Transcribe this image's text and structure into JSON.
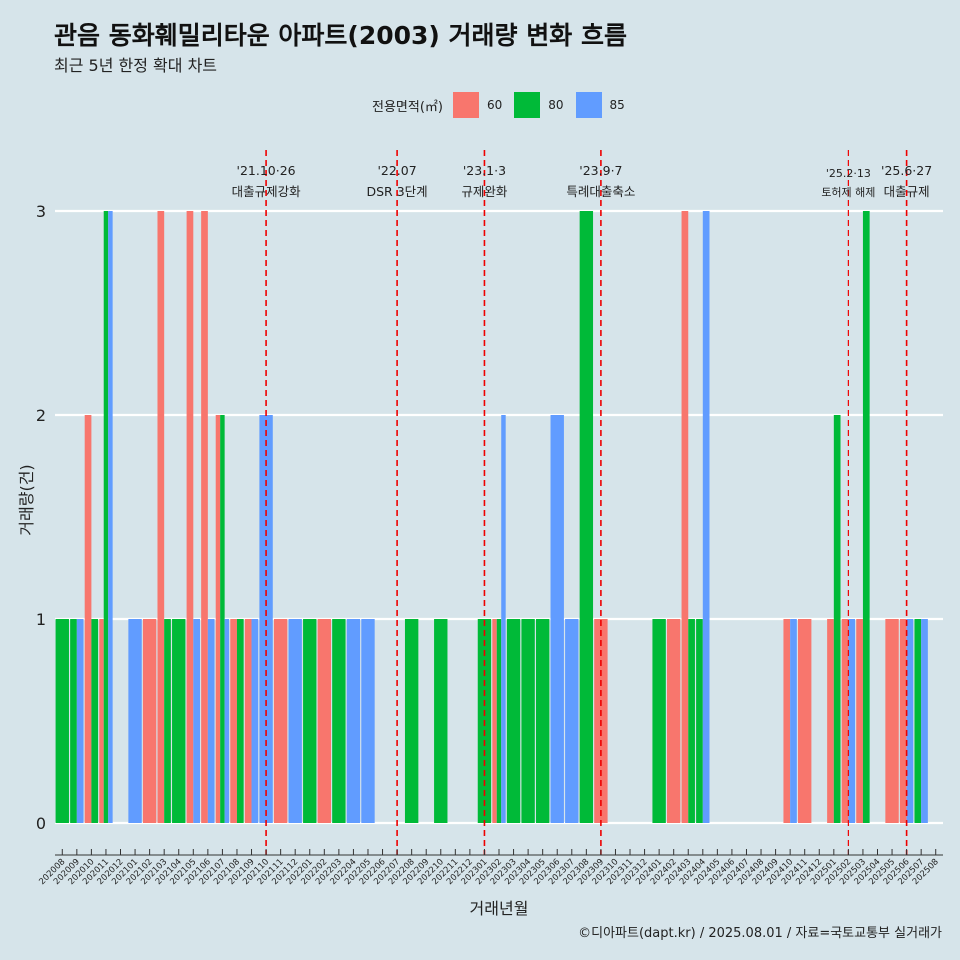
{
  "title": "관음 동화훼밀리타운 아파트(2003) 거래량 변화 흐름",
  "subtitle": "최근 5년 한정 확대 차트",
  "caption": "©디아파트(dapt.kr) / 2025.08.01 / 자료=국토교통부 실거래가",
  "colors": {
    "60": "#f8766d",
    "80": "#00ba38",
    "85": "#619cff",
    "event_line": "#ee0000",
    "grid": "#ffffff",
    "background": "#d6e4ea"
  },
  "legend": {
    "title": "전용면적(㎡)",
    "items": [
      {
        "label": "60",
        "key": "60"
      },
      {
        "label": "80",
        "key": "80"
      },
      {
        "label": "85",
        "key": "85"
      }
    ]
  },
  "chart_data": {
    "type": "bar",
    "xlabel": "거래년월",
    "ylabel": "거래량(건)",
    "ylim": [
      0,
      3
    ],
    "yticks": [
      0,
      1,
      2,
      3
    ],
    "categories": [
      "202008",
      "202009",
      "202010",
      "202011",
      "202012",
      "202101",
      "202102",
      "202103",
      "202104",
      "202105",
      "202106",
      "202107",
      "202108",
      "202109",
      "202110",
      "202111",
      "202112",
      "202201",
      "202202",
      "202203",
      "202204",
      "202205",
      "202206",
      "202207",
      "202208",
      "202209",
      "202210",
      "202211",
      "202212",
      "202301",
      "202302",
      "202303",
      "202304",
      "202305",
      "202306",
      "202307",
      "202308",
      "202309",
      "202310",
      "202311",
      "202312",
      "202401",
      "202402",
      "202403",
      "202404",
      "202405",
      "202406",
      "202407",
      "202408",
      "202409",
      "202410",
      "202411",
      "202412",
      "202501",
      "202502",
      "202503",
      "202504",
      "202505",
      "202506",
      "202507",
      "202508"
    ],
    "bars": [
      {
        "month": "202008",
        "sizes": [
          {
            "size": "80",
            "value": 1
          }
        ]
      },
      {
        "month": "202009",
        "sizes": [
          {
            "size": "80",
            "value": 1
          },
          {
            "size": "85",
            "value": 1
          }
        ]
      },
      {
        "month": "202010",
        "sizes": [
          {
            "size": "60",
            "value": 2
          },
          {
            "size": "80",
            "value": 1
          }
        ]
      },
      {
        "month": "202011",
        "sizes": [
          {
            "size": "60",
            "value": 1
          },
          {
            "size": "80",
            "value": 3
          },
          {
            "size": "85",
            "value": 3
          }
        ]
      },
      {
        "month": "202101",
        "sizes": [
          {
            "size": "85",
            "value": 1
          }
        ]
      },
      {
        "month": "202102",
        "sizes": [
          {
            "size": "60",
            "value": 1
          }
        ]
      },
      {
        "month": "202103",
        "sizes": [
          {
            "size": "60",
            "value": 3
          },
          {
            "size": "80",
            "value": 1
          }
        ]
      },
      {
        "month": "202104",
        "sizes": [
          {
            "size": "80",
            "value": 1
          }
        ]
      },
      {
        "month": "202105",
        "sizes": [
          {
            "size": "60",
            "value": 3
          },
          {
            "size": "85",
            "value": 1
          }
        ]
      },
      {
        "month": "202106",
        "sizes": [
          {
            "size": "60",
            "value": 3
          },
          {
            "size": "85",
            "value": 1
          }
        ]
      },
      {
        "month": "202107",
        "sizes": [
          {
            "size": "60",
            "value": 2
          },
          {
            "size": "80",
            "value": 2
          },
          {
            "size": "85",
            "value": 1
          }
        ]
      },
      {
        "month": "202108",
        "sizes": [
          {
            "size": "60",
            "value": 1
          },
          {
            "size": "80",
            "value": 1
          }
        ]
      },
      {
        "month": "202109",
        "sizes": [
          {
            "size": "60",
            "value": 1
          },
          {
            "size": "85",
            "value": 1
          }
        ]
      },
      {
        "month": "202110",
        "sizes": [
          {
            "size": "85",
            "value": 2
          }
        ]
      },
      {
        "month": "202111",
        "sizes": [
          {
            "size": "60",
            "value": 1
          }
        ]
      },
      {
        "month": "202112",
        "sizes": [
          {
            "size": "85",
            "value": 1
          }
        ]
      },
      {
        "month": "202201",
        "sizes": [
          {
            "size": "80",
            "value": 1
          }
        ]
      },
      {
        "month": "202202",
        "sizes": [
          {
            "size": "60",
            "value": 1
          }
        ]
      },
      {
        "month": "202203",
        "sizes": [
          {
            "size": "80",
            "value": 1
          }
        ]
      },
      {
        "month": "202204",
        "sizes": [
          {
            "size": "85",
            "value": 1
          }
        ]
      },
      {
        "month": "202205",
        "sizes": [
          {
            "size": "85",
            "value": 1
          }
        ]
      },
      {
        "month": "202208",
        "sizes": [
          {
            "size": "80",
            "value": 1
          }
        ]
      },
      {
        "month": "202210",
        "sizes": [
          {
            "size": "80",
            "value": 1
          }
        ]
      },
      {
        "month": "202301",
        "sizes": [
          {
            "size": "80",
            "value": 1
          }
        ]
      },
      {
        "month": "202302",
        "sizes": [
          {
            "size": "60",
            "value": 1
          },
          {
            "size": "80",
            "value": 1
          },
          {
            "size": "85",
            "value": 2
          }
        ]
      },
      {
        "month": "202303",
        "sizes": [
          {
            "size": "80",
            "value": 1
          }
        ]
      },
      {
        "month": "202304",
        "sizes": [
          {
            "size": "80",
            "value": 1
          }
        ]
      },
      {
        "month": "202305",
        "sizes": [
          {
            "size": "80",
            "value": 1
          }
        ]
      },
      {
        "month": "202306",
        "sizes": [
          {
            "size": "85",
            "value": 2
          }
        ]
      },
      {
        "month": "202307",
        "sizes": [
          {
            "size": "85",
            "value": 1
          }
        ]
      },
      {
        "month": "202308",
        "sizes": [
          {
            "size": "80",
            "value": 3
          }
        ]
      },
      {
        "month": "202309",
        "sizes": [
          {
            "size": "60",
            "value": 1
          }
        ]
      },
      {
        "month": "202401",
        "sizes": [
          {
            "size": "80",
            "value": 1
          }
        ]
      },
      {
        "month": "202402",
        "sizes": [
          {
            "size": "60",
            "value": 1
          }
        ]
      },
      {
        "month": "202403",
        "sizes": [
          {
            "size": "60",
            "value": 3
          },
          {
            "size": "80",
            "value": 1
          }
        ]
      },
      {
        "month": "202404",
        "sizes": [
          {
            "size": "80",
            "value": 1
          },
          {
            "size": "85",
            "value": 3
          }
        ]
      },
      {
        "month": "202410",
        "sizes": [
          {
            "size": "85",
            "value": 1
          },
          {
            "size": "60",
            "value": 1
          }
        ]
      },
      {
        "month": "202411",
        "sizes": [
          {
            "size": "60",
            "value": 1
          }
        ]
      },
      {
        "month": "202501",
        "sizes": [
          {
            "size": "60",
            "value": 1
          },
          {
            "size": "80",
            "value": 2
          }
        ]
      },
      {
        "month": "202502",
        "sizes": [
          {
            "size": "60",
            "value": 1
          },
          {
            "size": "85",
            "value": 1
          }
        ]
      },
      {
        "month": "202503",
        "sizes": [
          {
            "size": "60",
            "value": 1
          },
          {
            "size": "80",
            "value": 3
          }
        ]
      },
      {
        "month": "202505",
        "sizes": [
          {
            "size": "60",
            "value": 1
          }
        ]
      },
      {
        "month": "202506",
        "sizes": [
          {
            "size": "60",
            "value": 1
          },
          {
            "size": "85",
            "value": 1
          }
        ]
      },
      {
        "month": "202507",
        "sizes": [
          {
            "size": "80",
            "value": 1
          },
          {
            "size": "85",
            "value": 1
          }
        ]
      }
    ],
    "events": [
      {
        "date_label": "'21.10·26",
        "event_label": "대출규제강화",
        "month": "202110",
        "small": false
      },
      {
        "date_label": "'22.07",
        "event_label": "DSR 3단계",
        "month": "202207",
        "small": false
      },
      {
        "date_label": "'23.1·3",
        "event_label": "규제완화",
        "month": "202301",
        "small": false
      },
      {
        "date_label": "'23.9·7",
        "event_label": "특례대출축소",
        "month": "202309",
        "small": false
      },
      {
        "date_label": "'25.2·13",
        "event_label": "토허제 해제",
        "month": "202502",
        "small": true
      },
      {
        "date_label": "'25.6·27",
        "event_label": "대출규제",
        "month": "202506",
        "small": false
      }
    ]
  }
}
